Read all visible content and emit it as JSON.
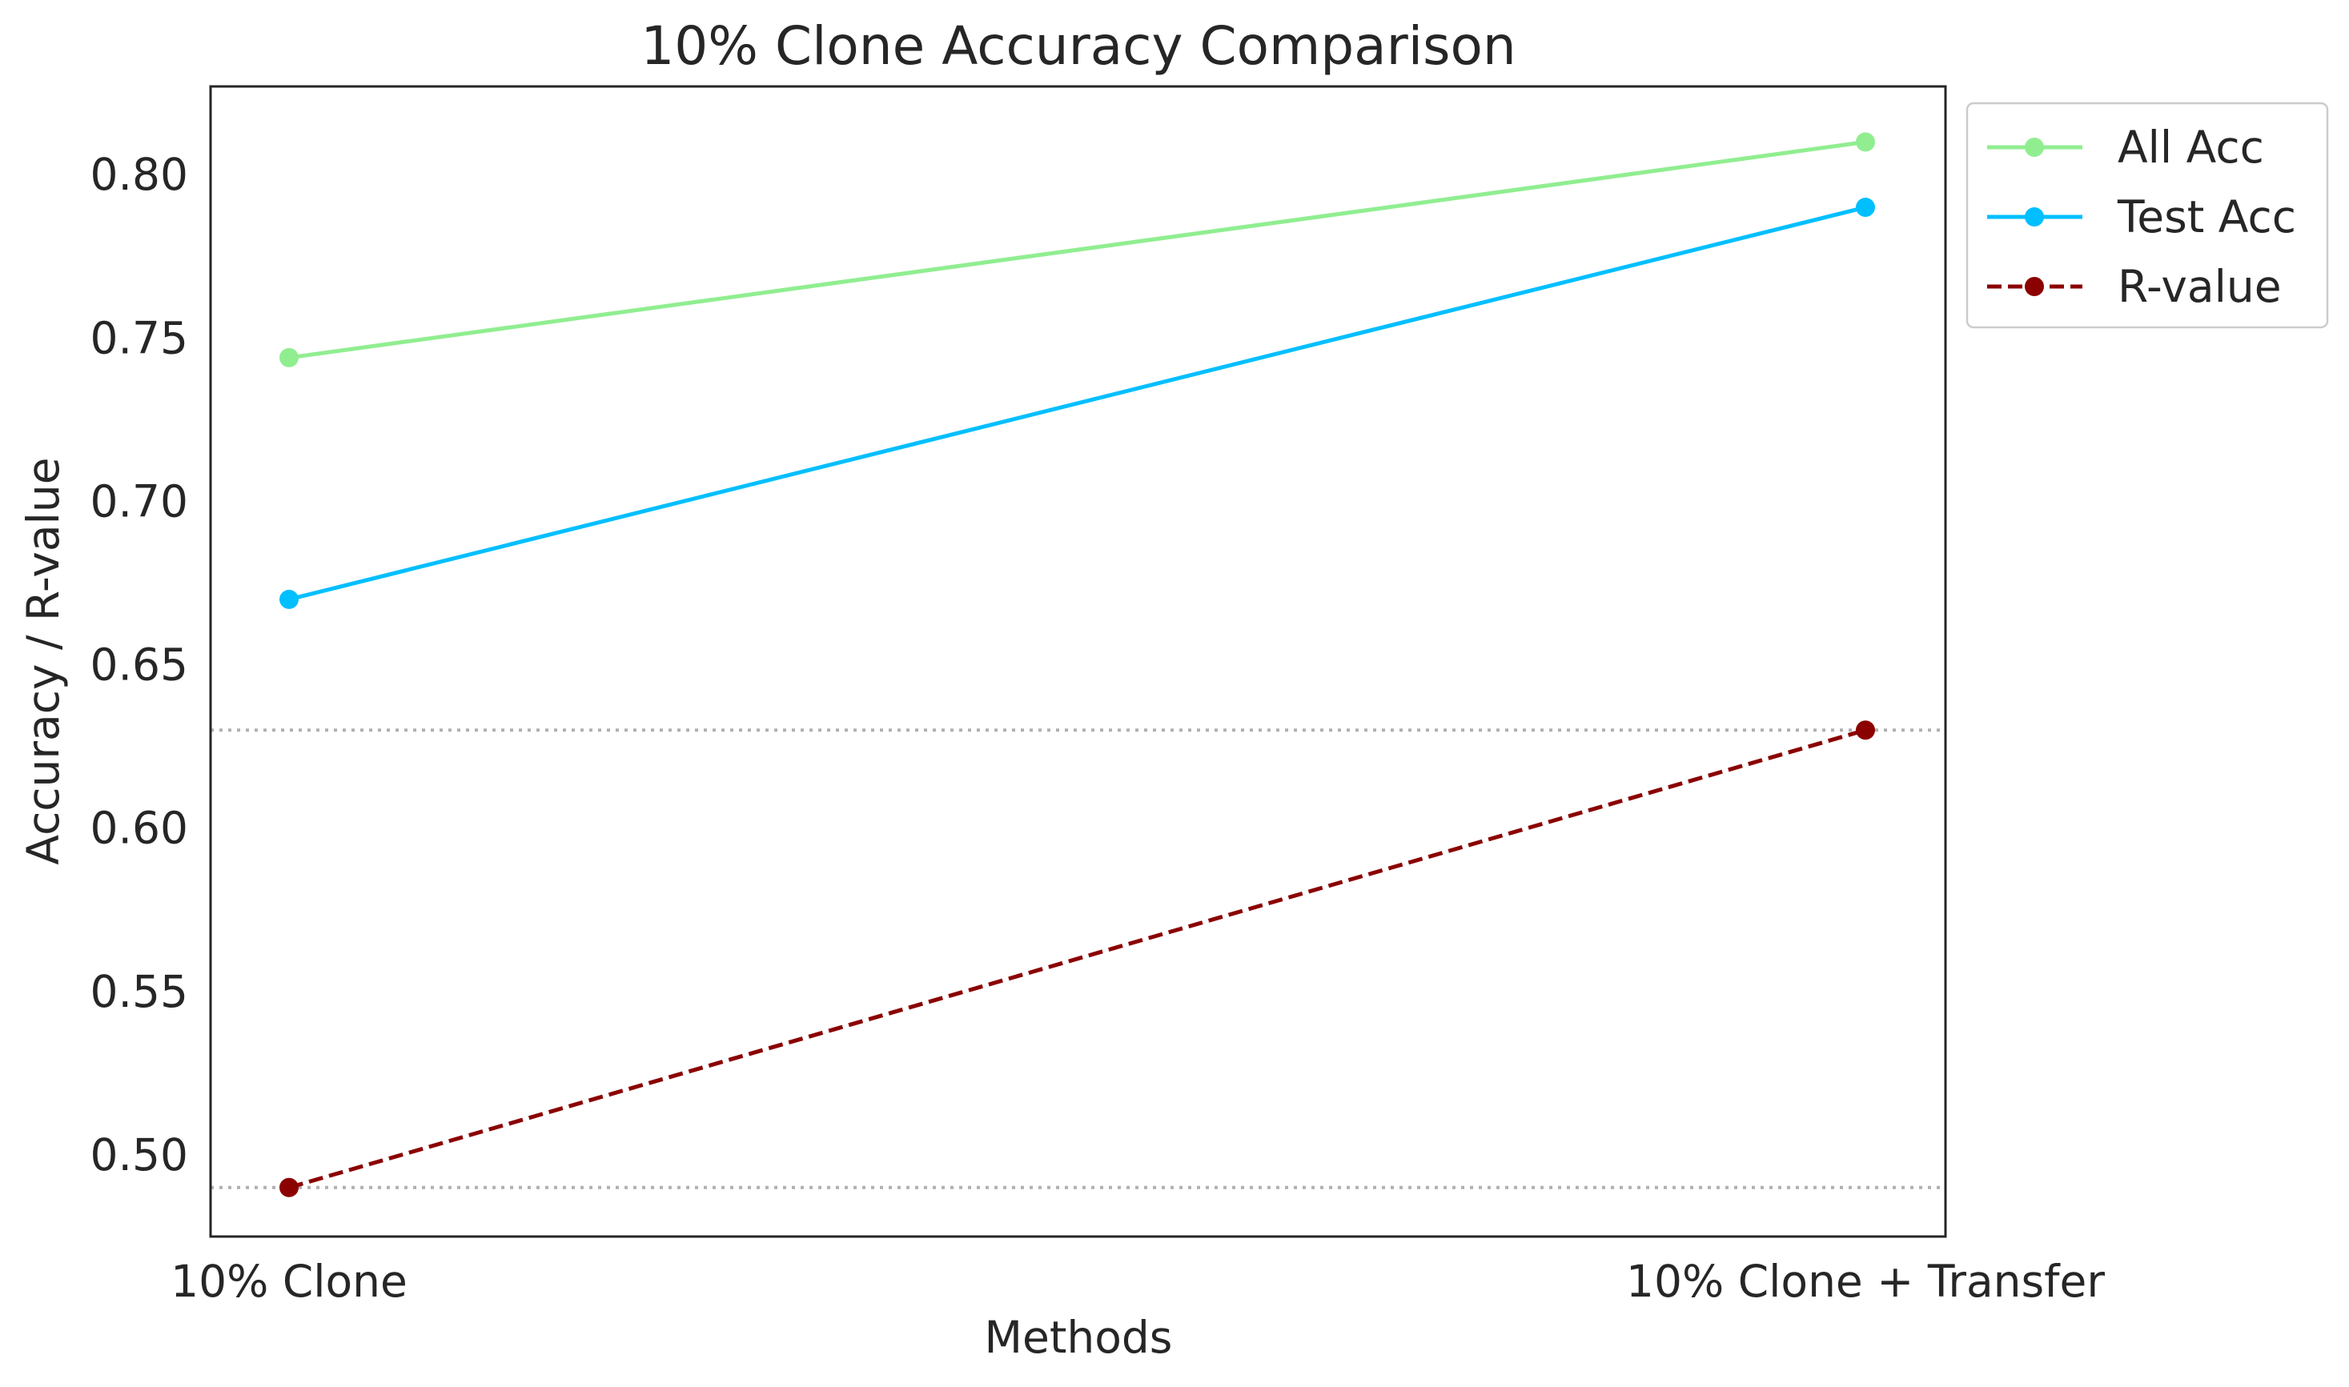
{
  "chart_data": {
    "type": "line",
    "title": "10% Clone Accuracy Comparison",
    "xlabel": "Methods",
    "ylabel": "Accuracy / R-value",
    "categories": [
      "10% Clone",
      "10% Clone + Transfer"
    ],
    "ylim": [
      0.475,
      0.827
    ],
    "yticks": [
      0.5,
      0.55,
      0.6,
      0.65,
      0.7,
      0.75,
      0.8
    ],
    "ytick_labels": [
      "0.50",
      "0.55",
      "0.60",
      "0.65",
      "0.70",
      "0.75",
      "0.80"
    ],
    "grid": false,
    "reference_lines": [
      0.49,
      0.63
    ],
    "legend_position": "outside upper-right",
    "series": [
      {
        "name": "All Acc",
        "values": [
          0.744,
          0.81
        ],
        "color": "#90EE90",
        "dash": "solid"
      },
      {
        "name": "Test Acc",
        "values": [
          0.67,
          0.79
        ],
        "color": "#00BFFF",
        "dash": "solid"
      },
      {
        "name": "R-value",
        "values": [
          0.49,
          0.63
        ],
        "color": "#8B0000",
        "dash": "dashed"
      }
    ]
  }
}
